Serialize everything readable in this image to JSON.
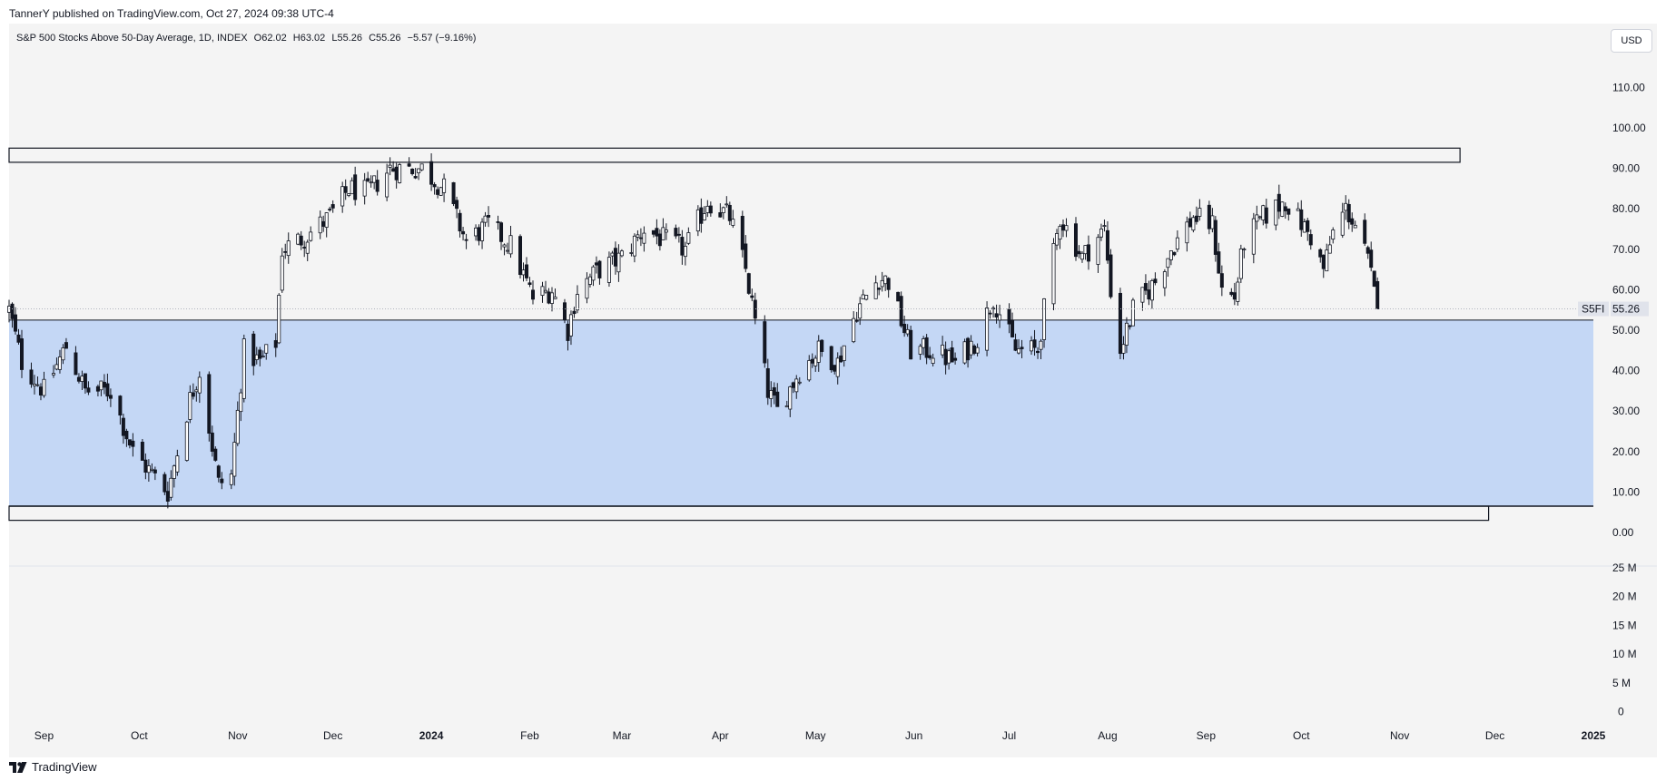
{
  "header": {
    "publisher_text": "TannerY published on TradingView.com, Oct 27, 2024 09:38 UTC-4"
  },
  "legend": {
    "symbol": "S&P 500 Stocks Above 50-Day Average, 1D, INDEX",
    "open": "O62.02",
    "high": "H63.02",
    "low": "L55.26",
    "close": "C55.26",
    "change": "−5.57 (−9.16%)"
  },
  "currency_button": "USD",
  "price_axis": {
    "labels": [
      "110.00",
      "100.00",
      "90.00",
      "80.00",
      "70.00",
      "60.00",
      "50.00",
      "40.00",
      "30.00",
      "20.00",
      "10.00",
      "0.00"
    ],
    "symbol_tag": "S5FI",
    "last_price_label": "55.26"
  },
  "volume_axis": {
    "labels": [
      "25 M",
      "20 M",
      "15 M",
      "10 M",
      "5 M",
      "0"
    ]
  },
  "time_axis": {
    "labels": [
      "Sep",
      "Oct",
      "Nov",
      "Dec",
      "2024",
      "Feb",
      "Mar",
      "Apr",
      "May",
      "Jun",
      "Jul",
      "Aug",
      "Sep",
      "Oct",
      "Nov",
      "Dec",
      "2025"
    ],
    "bold_labels": [
      "2024",
      "2025"
    ]
  },
  "footer": {
    "logo_text": "TradingView"
  },
  "colors": {
    "background": "#f4f4f4",
    "zone_fill": "#c4d7f5",
    "candle_up": "#ffffff",
    "candle_down": "#131722",
    "outline": "#131722",
    "last_price_line": "#b2b5be"
  },
  "chart_data": {
    "type": "candlestick",
    "title": "S&P 500 Stocks Above 50-Day Average, 1D, INDEX",
    "x_range": [
      "2023-08-21",
      "2025-01-01"
    ],
    "ylim": [
      -8,
      119
    ],
    "last_price": 55.26,
    "zones": [
      {
        "name": "upper-rectangle",
        "from": 91.5,
        "to": 95,
        "start": "2023-08-21",
        "end": "2024-11-20"
      },
      {
        "name": "blue-zone",
        "from": 6.5,
        "to": 52.5,
        "start": "2023-08-21",
        "end": "2025-01-01"
      },
      {
        "name": "lower-rectangle",
        "from": 3,
        "to": 6.5,
        "start": "2023-08-21",
        "end": "2024-11-29"
      }
    ],
    "anchors": [
      [
        "2023-08-21",
        55
      ],
      [
        "2023-08-25",
        42
      ],
      [
        "2023-09-01",
        35
      ],
      [
        "2023-09-08",
        46
      ],
      [
        "2023-09-14",
        35
      ],
      [
        "2023-09-22",
        35
      ],
      [
        "2023-09-29",
        20
      ],
      [
        "2023-10-10",
        10
      ],
      [
        "2023-10-17",
        33
      ],
      [
        "2023-10-20",
        40
      ],
      [
        "2023-10-26",
        12
      ],
      [
        "2023-10-30",
        14
      ],
      [
        "2023-11-03",
        45
      ],
      [
        "2023-11-08",
        42
      ],
      [
        "2023-11-13",
        47
      ],
      [
        "2023-11-15",
        70
      ],
      [
        "2023-11-22",
        73
      ],
      [
        "2023-11-30",
        78
      ],
      [
        "2023-12-06",
        85
      ],
      [
        "2023-12-12",
        84
      ],
      [
        "2023-12-19",
        90
      ],
      [
        "2023-12-29",
        90
      ],
      [
        "2024-01-05",
        85
      ],
      [
        "2024-01-12",
        72
      ],
      [
        "2024-01-19",
        76
      ],
      [
        "2024-01-26",
        71
      ],
      [
        "2024-02-02",
        58
      ],
      [
        "2024-02-08",
        60
      ],
      [
        "2024-02-13",
        50
      ],
      [
        "2024-02-16",
        60
      ],
      [
        "2024-02-23",
        65
      ],
      [
        "2024-03-01",
        68
      ],
      [
        "2024-03-08",
        75
      ],
      [
        "2024-03-15",
        72
      ],
      [
        "2024-03-21",
        70
      ],
      [
        "2024-03-28",
        82
      ],
      [
        "2024-04-04",
        78
      ],
      [
        "2024-04-09",
        65
      ],
      [
        "2024-04-12",
        52
      ],
      [
        "2024-04-16",
        35
      ],
      [
        "2024-04-19",
        30
      ],
      [
        "2024-04-26",
        40
      ],
      [
        "2024-05-02",
        45
      ],
      [
        "2024-05-08",
        42
      ],
      [
        "2024-05-14",
        55
      ],
      [
        "2024-05-21",
        63
      ],
      [
        "2024-05-24",
        62
      ],
      [
        "2024-05-31",
        45
      ],
      [
        "2024-06-07",
        45
      ],
      [
        "2024-06-14",
        42
      ],
      [
        "2024-06-21",
        48
      ],
      [
        "2024-06-26",
        58
      ],
      [
        "2024-07-03",
        45
      ],
      [
        "2024-07-10",
        45
      ],
      [
        "2024-07-12",
        55
      ],
      [
        "2024-07-17",
        78
      ],
      [
        "2024-07-24",
        68
      ],
      [
        "2024-07-31",
        75
      ],
      [
        "2024-08-02",
        60
      ],
      [
        "2024-08-05",
        45
      ],
      [
        "2024-08-09",
        55
      ],
      [
        "2024-08-16",
        62
      ],
      [
        "2024-08-21",
        70
      ],
      [
        "2024-08-28",
        78
      ],
      [
        "2024-09-03",
        76
      ],
      [
        "2024-09-06",
        60
      ],
      [
        "2024-09-10",
        58
      ],
      [
        "2024-09-13",
        72
      ],
      [
        "2024-09-19",
        78
      ],
      [
        "2024-09-26",
        82
      ],
      [
        "2024-10-04",
        73
      ],
      [
        "2024-10-08",
        65
      ],
      [
        "2024-10-11",
        74
      ],
      [
        "2024-10-15",
        80
      ],
      [
        "2024-10-18",
        76
      ],
      [
        "2024-10-22",
        67
      ],
      [
        "2024-10-25",
        55.26
      ]
    ]
  }
}
